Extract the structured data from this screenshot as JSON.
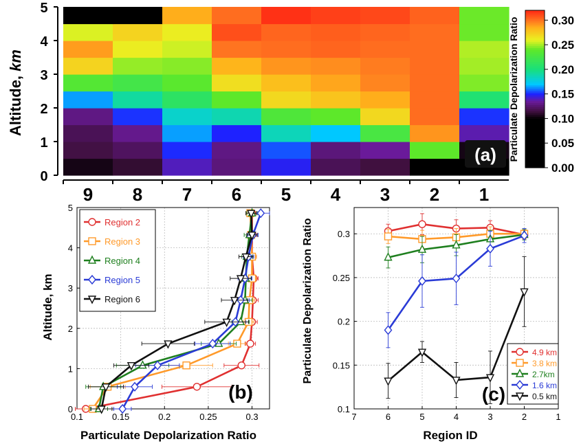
{
  "chart_data": [
    {
      "id": "a",
      "type": "heatmap",
      "panel_label": "(a)",
      "ylabel_prefix": "Altitude, ",
      "ylabel_unit": "km",
      "y_ticks": [
        "0",
        "1",
        "2",
        "3",
        "4",
        "5"
      ],
      "x_categories": [
        "9",
        "8",
        "7",
        "6",
        "5",
        "4",
        "3",
        "2",
        "1"
      ],
      "ylim": [
        0,
        5
      ],
      "rows_bottom_to_top": 10,
      "colorbar": {
        "label": "Particulate Depolarization Ratio",
        "range": [
          0.0,
          0.32
        ],
        "ticks": [
          "0.00",
          "0.05",
          "0.10",
          "0.15",
          "0.20",
          "0.25",
          "0.30"
        ],
        "tick_values": [
          0.0,
          0.05,
          0.1,
          0.15,
          0.2,
          0.25,
          0.3
        ],
        "stops": [
          {
            "v": 0.0,
            "c": "#000000"
          },
          {
            "v": 0.1,
            "c": "#000000"
          },
          {
            "v": 0.115,
            "c": "#40103f"
          },
          {
            "v": 0.135,
            "c": "#6a1a9a"
          },
          {
            "v": 0.15,
            "c": "#1e22ff"
          },
          {
            "v": 0.17,
            "c": "#00c8ff"
          },
          {
            "v": 0.2,
            "c": "#19e07c"
          },
          {
            "v": 0.24,
            "c": "#5de82a"
          },
          {
            "v": 0.26,
            "c": "#e9f222"
          },
          {
            "v": 0.285,
            "c": "#ffb21b"
          },
          {
            "v": 0.3,
            "c": "#ff7420"
          },
          {
            "v": 0.32,
            "c": "#ff2a14"
          }
        ]
      },
      "values": [
        [
          0.105,
          0.112,
          0.14,
          0.128,
          0.148,
          0.12,
          0.115,
          0.1,
          0.095
        ],
        [
          0.116,
          0.122,
          0.151,
          0.13,
          0.156,
          0.128,
          0.135,
          0.24,
          0.105
        ],
        [
          0.12,
          0.132,
          0.165,
          0.15,
          0.186,
          0.17,
          0.228,
          0.292,
          0.138
        ],
        [
          0.13,
          0.152,
          0.182,
          0.188,
          0.232,
          0.24,
          0.27,
          0.302,
          0.152
        ],
        [
          0.165,
          0.192,
          0.212,
          0.24,
          0.27,
          0.278,
          0.286,
          0.302,
          0.205
        ],
        [
          0.235,
          0.225,
          0.238,
          0.268,
          0.28,
          0.288,
          0.296,
          0.302,
          0.245
        ],
        [
          0.272,
          0.248,
          0.246,
          0.284,
          0.292,
          0.294,
          0.298,
          0.302,
          0.25
        ],
        [
          0.29,
          0.262,
          0.256,
          0.3,
          0.302,
          0.304,
          0.302,
          0.302,
          0.252
        ],
        [
          0.258,
          0.272,
          0.262,
          0.31,
          0.304,
          0.306,
          0.304,
          0.302,
          0.242
        ],
        [
          0.0,
          0.0,
          0.286,
          0.302,
          0.318,
          0.314,
          0.312,
          0.305,
          0.242
        ]
      ]
    },
    {
      "id": "b",
      "type": "line",
      "panel_label": "(b)",
      "xlabel": "Particulate Depolarization Ratio",
      "ylabel": "Altitude, km",
      "xlim": [
        0.1,
        0.32
      ],
      "ylim": [
        0,
        5
      ],
      "x_ticks": [
        "0.1",
        "0.15",
        "0.2",
        "0.25",
        "0.3"
      ],
      "x_tick_values": [
        0.1,
        0.15,
        0.2,
        0.25,
        0.3
      ],
      "y_ticks": [
        "0",
        "1",
        "2",
        "3",
        "4",
        "5"
      ],
      "y_tick_values": [
        0,
        1,
        2,
        3,
        4,
        5
      ],
      "grid": true,
      "legend": "top-left",
      "series": [
        {
          "name": "Region 2",
          "color": "#e03030",
          "marker": "circle",
          "points": [
            [
              0.11,
              0
            ],
            [
              0.237,
              0.55
            ],
            [
              0.288,
              1.08
            ],
            [
              0.298,
              1.62
            ],
            [
              0.3,
              2.16
            ],
            [
              0.301,
              2.7
            ],
            [
              0.302,
              3.24
            ],
            [
              0.3,
              3.78
            ],
            [
              0.3,
              4.32
            ],
            [
              0.3,
              4.86
            ]
          ],
          "xerr": [
            0.012,
            0.04,
            0.02,
            0.006,
            0.006,
            0.006,
            0.005,
            0.005,
            0.005,
            0.005
          ]
        },
        {
          "name": "Region 3",
          "color": "#ff9a2a",
          "marker": "square",
          "points": [
            [
              0.118,
              0
            ],
            [
              0.135,
              0.55
            ],
            [
              0.225,
              1.08
            ],
            [
              0.283,
              1.62
            ],
            [
              0.296,
              2.16
            ],
            [
              0.297,
              2.7
            ],
            [
              0.3,
              3.24
            ],
            [
              0.3,
              3.78
            ],
            [
              0.299,
              4.32
            ],
            [
              0.298,
              4.86
            ]
          ],
          "xerr": [
            0.01,
            0.02,
            0.03,
            0.01,
            0.006,
            0.006,
            0.005,
            0.005,
            0.005,
            0.005
          ]
        },
        {
          "name": "Region 4",
          "color": "#1e7f1e",
          "marker": "triangle-up",
          "points": [
            [
              0.125,
              0
            ],
            [
              0.13,
              0.55
            ],
            [
              0.175,
              1.08
            ],
            [
              0.262,
              1.62
            ],
            [
              0.287,
              2.16
            ],
            [
              0.292,
              2.7
            ],
            [
              0.293,
              3.24
            ],
            [
              0.294,
              3.78
            ],
            [
              0.297,
              4.32
            ],
            [
              0.3,
              4.86
            ]
          ],
          "xerr": [
            0.01,
            0.02,
            0.03,
            0.02,
            0.01,
            0.008,
            0.006,
            0.006,
            0.006,
            0.006
          ]
        },
        {
          "name": "Region 5",
          "color": "#2a3bd6",
          "marker": "diamond",
          "points": [
            [
              0.152,
              0
            ],
            [
              0.166,
              0.55
            ],
            [
              0.192,
              1.08
            ],
            [
              0.255,
              1.62
            ],
            [
              0.281,
              2.16
            ],
            [
              0.287,
              2.7
            ],
            [
              0.292,
              3.24
            ],
            [
              0.296,
              3.78
            ],
            [
              0.301,
              4.32
            ],
            [
              0.31,
              4.86
            ]
          ],
          "xerr": [
            0.01,
            0.02,
            0.025,
            0.02,
            0.012,
            0.01,
            0.008,
            0.006,
            0.006,
            0.01
          ]
        },
        {
          "name": "Region 6",
          "color": "#111111",
          "marker": "triangle-down",
          "points": [
            [
              0.128,
              0
            ],
            [
              0.133,
              0.55
            ],
            [
              0.162,
              1.08
            ],
            [
              0.204,
              1.62
            ],
            [
              0.271,
              2.16
            ],
            [
              0.28,
              2.7
            ],
            [
              0.287,
              3.24
            ],
            [
              0.293,
              3.78
            ],
            [
              0.3,
              4.32
            ],
            [
              0.299,
              4.86
            ]
          ],
          "xerr": [
            0.012,
            0.02,
            0.02,
            0.03,
            0.025,
            0.015,
            0.012,
            0.008,
            0.006,
            0.006
          ]
        }
      ]
    },
    {
      "id": "c",
      "type": "line",
      "panel_label": "(c)",
      "xlabel": "Region ID",
      "ylabel": "Particulate Depolarization Ratio",
      "xlim": [
        7,
        1
      ],
      "ylim": [
        0.1,
        0.33
      ],
      "x_ticks": [
        "7",
        "6",
        "5",
        "4",
        "3",
        "2",
        "1"
      ],
      "x_tick_values": [
        7,
        6,
        5,
        4,
        3,
        2,
        1
      ],
      "y_ticks": [
        "0.1",
        "0.15",
        "0.2",
        "0.25",
        "0.3"
      ],
      "y_tick_values": [
        0.1,
        0.15,
        0.2,
        0.25,
        0.3
      ],
      "grid": true,
      "legend": "bottom-right",
      "series": [
        {
          "name": "4.9 km",
          "color": "#e03030",
          "marker": "circle",
          "points": [
            [
              6,
              0.303
            ],
            [
              5,
              0.311
            ],
            [
              4,
              0.306
            ],
            [
              3,
              0.307
            ],
            [
              2,
              0.299
            ]
          ],
          "yerr": [
            0.008,
            0.012,
            0.01,
            0.008,
            0.005
          ]
        },
        {
          "name": "3.8 km",
          "color": "#ff9a2a",
          "marker": "square",
          "points": [
            [
              6,
              0.297
            ],
            [
              5,
              0.294
            ],
            [
              4,
              0.296
            ],
            [
              3,
              0.3
            ],
            [
              2,
              0.3
            ]
          ],
          "yerr": [
            0.008,
            0.01,
            0.01,
            0.008,
            0.005
          ]
        },
        {
          "name": "2.7km",
          "color": "#1e7f1e",
          "marker": "triangle-up",
          "points": [
            [
              6,
              0.273
            ],
            [
              5,
              0.282
            ],
            [
              4,
              0.287
            ],
            [
              3,
              0.294
            ],
            [
              2,
              0.299
            ]
          ],
          "yerr": [
            0.012,
            0.015,
            0.012,
            0.01,
            0.006
          ]
        },
        {
          "name": "1.6 km",
          "color": "#2a3bd6",
          "marker": "diamond",
          "points": [
            [
              6,
              0.19
            ],
            [
              5,
              0.246
            ],
            [
              4,
              0.249
            ],
            [
              3,
              0.283
            ],
            [
              2,
              0.298
            ]
          ],
          "yerr": [
            0.02,
            0.03,
            0.03,
            0.02,
            0.008
          ]
        },
        {
          "name": "0.5 km",
          "color": "#111111",
          "marker": "triangle-down",
          "points": [
            [
              6,
              0.132
            ],
            [
              5,
              0.165
            ],
            [
              4,
              0.133
            ],
            [
              3,
              0.136
            ],
            [
              2,
              0.234
            ]
          ],
          "yerr": [
            0.02,
            0.012,
            0.02,
            0.03,
            0.04
          ]
        }
      ]
    }
  ]
}
